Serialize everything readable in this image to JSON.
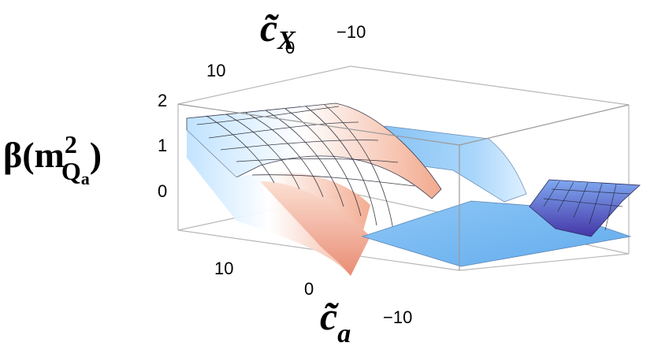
{
  "chart_data": {
    "type": "surface3d",
    "title": "",
    "zlabel": {
      "main": "β(m",
      "sup": "2",
      "sub": "Q",
      "subsub": "a",
      "close": ")"
    },
    "xlabel": {
      "main": "c̃",
      "sub": "a"
    },
    "ylabel": {
      "main": "c̃",
      "sub": "X"
    },
    "z_ticks": [
      "2",
      "1",
      "0"
    ],
    "ca_ticks": [
      "10",
      "0",
      "−10"
    ],
    "cX_ticks": [
      "10",
      "0",
      "−10"
    ],
    "ca_range": [
      -16,
      16
    ],
    "cX_range": [
      -16,
      16
    ],
    "z_range": [
      -1,
      2
    ],
    "regions": [
      {
        "name": "ridge-surface",
        "ca_range": [
          1.5,
          16
        ],
        "cX_range": [
          -16,
          16
        ],
        "z_top": 1.6,
        "z_edge": -1
      },
      {
        "name": "flat-plateau",
        "ca_range": [
          -16,
          1.5
        ],
        "cX_range": [
          -16,
          16
        ],
        "z": 0
      },
      {
        "name": "small-ridge",
        "ca_range": [
          -16,
          1.5
        ],
        "cX_range": [
          -16,
          -6
        ],
        "z_top": 0.5
      }
    ],
    "colors": {
      "sky": "#7cbcf2",
      "peach": "#f3b79b",
      "violet": "#5a4fb0",
      "mesh": "#1b1b28"
    }
  }
}
